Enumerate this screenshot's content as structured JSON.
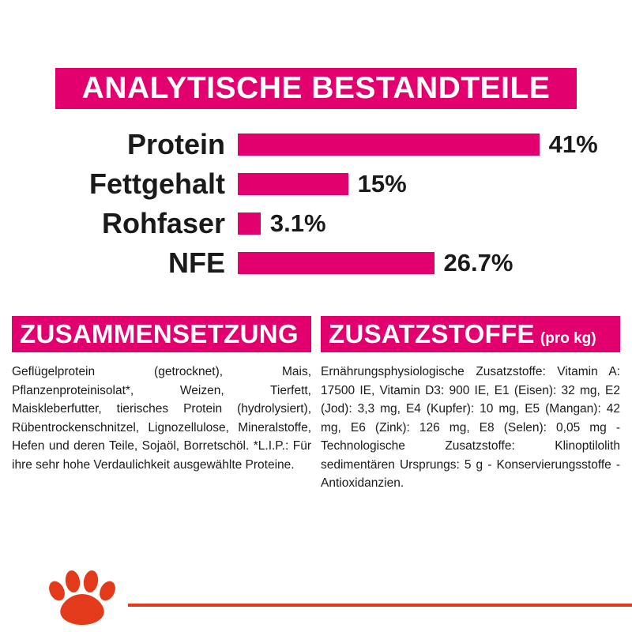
{
  "header": {
    "title": "ANALYTISCHE BESTANDTEILE"
  },
  "chart_data": {
    "type": "bar",
    "orientation": "horizontal",
    "title": "ANALYTISCHE BESTANDTEILE",
    "categories": [
      "Protein",
      "Fettgehalt",
      "Rohfaser",
      "NFE"
    ],
    "values": [
      41,
      15,
      3.1,
      26.7
    ],
    "value_labels": [
      "41%",
      "15%",
      "3.1%",
      "26.7%"
    ],
    "xlim": [
      0,
      52
    ],
    "bar_color": "#e2006e",
    "grid": false,
    "legend": false
  },
  "composition": {
    "title": "ZUSAMMENSETZUNG",
    "body": "Geflügelprotein (getrocknet), Mais, Pflanzenproteinisolat*, Weizen, Tierfett, Maiskleberfutter, tierisches Protein (hydrolysiert), Rübentrockenschnitzel, Lignozellulose, Mineralstoffe, Hefen und deren Teile, Sojaöl, Borretschöl. *L.I.P.: Für ihre sehr hohe Verdaulichkeit ausgewählte Proteine."
  },
  "additives": {
    "title": "ZUSATZSTOFFE",
    "title_suffix": "(pro kg)",
    "body": "Ernährungsphysiologische Zusatzstoffe: Vitamin A: 17500 IE, Vitamin D3: 900 IE, E1 (Eisen): 32 mg, E2 (Jod): 3,3 mg, E4 (Kupfer): 10 mg, E5 (Mangan): 42 mg, E6 (Zink): 126 mg, E8 (Selen): 0,05 mg - Technologische Zusatzstoffe: Klinoptilolith sedimentären Ursprungs: 5 g - Konservierungsstoffe - Antioxidanzien."
  },
  "footer": {
    "logo": "paw-icon"
  },
  "colors": {
    "brand_magenta": "#e2006e",
    "logo_red": "#e23a1b",
    "text": "#1a1a1a"
  }
}
